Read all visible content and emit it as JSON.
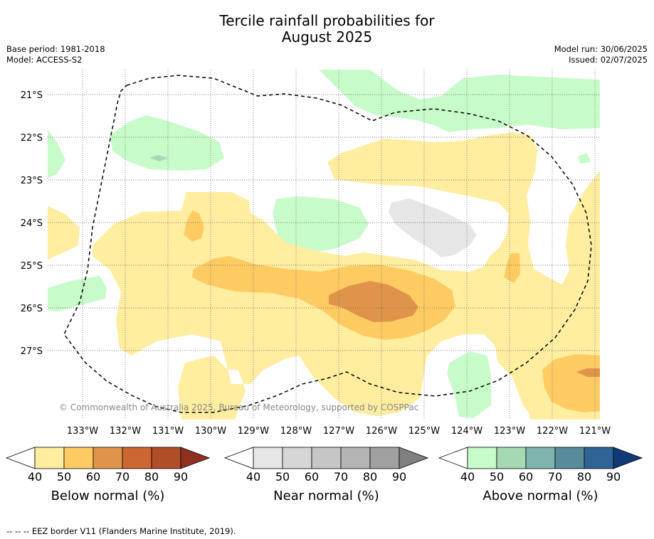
{
  "title_line1": "Tercile rainfall probabilities for",
  "title_line2": "August 2025",
  "meta_left": {
    "base_period": "Base period: 1981-2018",
    "model": "Model: ACCESS-S2"
  },
  "meta_right": {
    "model_run": "Model run: 30/06/2025",
    "issued": "Issued: 02/07/2025"
  },
  "copyright": "© Commonwealth of Australia 2025, Bureau of Meteorology, supported by COSPPac",
  "lat_labels": [
    "21°S",
    "22°S",
    "23°S",
    "24°S",
    "25°S",
    "26°S",
    "27°S"
  ],
  "lon_labels": [
    "133°W",
    "132°W",
    "131°W",
    "130°W",
    "129°W",
    "128°W",
    "127°W",
    "126°W",
    "125°W",
    "124°W",
    "123°W",
    "122°W",
    "121°W"
  ],
  "colorbars": [
    {
      "label": "Below normal (%)",
      "ticks": [
        "40",
        "50",
        "60",
        "70",
        "80",
        "90"
      ],
      "colors": [
        "#ffeda0",
        "#fecb63",
        "#e0944a",
        "#cc6633",
        "#b04e28",
        "#903020"
      ]
    },
    {
      "label": "Near normal (%)",
      "ticks": [
        "40",
        "50",
        "60",
        "70",
        "80",
        "90"
      ],
      "colors": [
        "#e6e6e6",
        "#d6d6d6",
        "#c6c6c6",
        "#b4b4b4",
        "#a0a0a0",
        "#808080"
      ]
    },
    {
      "label": "Above normal (%)",
      "ticks": [
        "40",
        "50",
        "60",
        "70",
        "80",
        "90"
      ],
      "colors": [
        "#c7fcca",
        "#a4d9b4",
        "#7fb4af",
        "#588c9a",
        "#2f6496",
        "#0f3a78"
      ]
    }
  ],
  "footnote": "--  --  -- EEZ border V11 (Flanders Marine Institute, 2019).",
  "colors": {
    "below_40": "#ffeda0",
    "below_50": "#fecb63",
    "below_60": "#e0944a",
    "near_40": "#e6e6e6",
    "above_40": "#c7fcca",
    "above_50": "#a4d9b4"
  }
}
